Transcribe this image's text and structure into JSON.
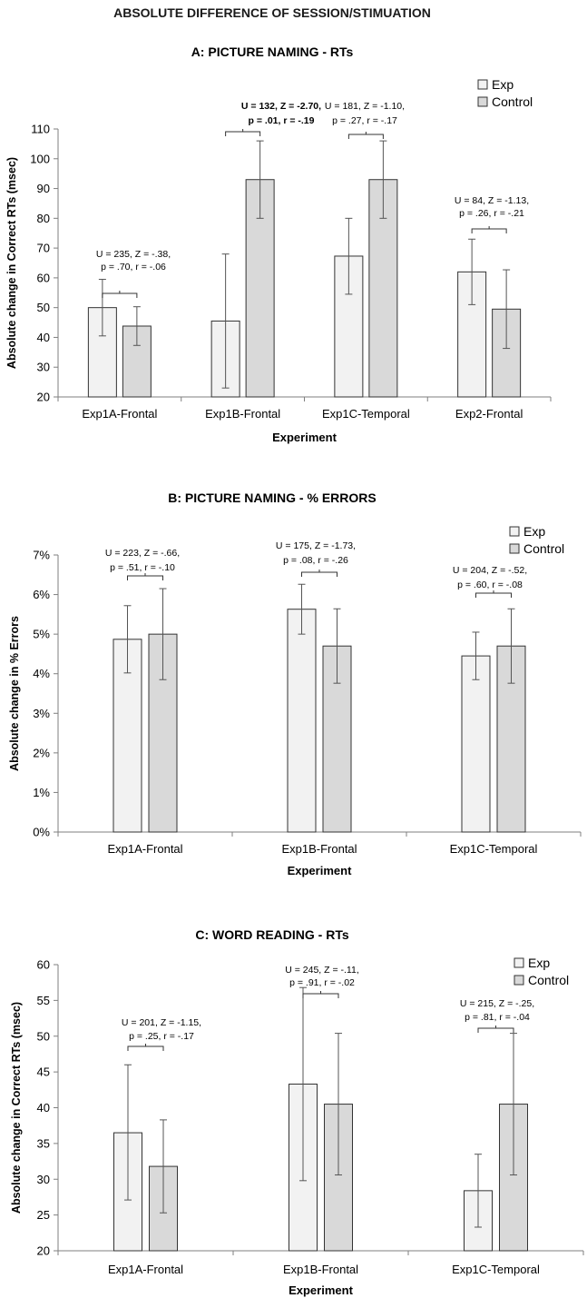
{
  "page_title": "ABSOLUTE DIFFERENCE OF SESSION/STIMUATION",
  "colors": {
    "exp": "#f2f2f2",
    "control": "#d9d9d9",
    "edge": "#333333",
    "axis": "#7f7f7f"
  },
  "chart_data": [
    {
      "id": "A",
      "type": "bar",
      "title": "A: PICTURE NAMING - RTs",
      "xlabel": "Experiment",
      "ylabel": "Absolute change in Correct RTs (msec)",
      "ylim": [
        20,
        110
      ],
      "yticks": [
        "20",
        "30",
        "40",
        "50",
        "60",
        "70",
        "80",
        "90",
        "100",
        "110"
      ],
      "grid": false,
      "legend_position": "top-right",
      "categories": [
        "Exp1A-Frontal",
        "Exp1B-Frontal",
        "Exp1C-Temporal",
        "Exp2-Frontal"
      ],
      "series": [
        {
          "name": "Exp",
          "values": [
            50,
            45.5,
            67.3,
            62
          ],
          "error_low": [
            40.5,
            23,
            54.5,
            51
          ],
          "error_high": [
            59.5,
            68,
            80,
            73
          ]
        },
        {
          "name": "Control",
          "values": [
            43.8,
            93,
            93,
            49.5
          ],
          "error_low": [
            37.3,
            80,
            80,
            36.3
          ],
          "error_high": [
            50.3,
            106,
            106,
            62.7
          ]
        }
      ],
      "annotations": [
        {
          "lines": [
            "U = 235, Z = -.38,",
            "p = .70, r = -.06"
          ],
          "bold": false
        },
        {
          "lines": [
            "U = 132, Z = -2.70,",
            "p = .01, r = -.19"
          ],
          "bold": true
        },
        {
          "lines": [
            "U = 181, Z = -1.10,",
            "p = .27, r = -.17"
          ],
          "bold": false
        },
        {
          "lines": [
            "U = 84, Z = -1.13,",
            "p = .26, r = -.21"
          ],
          "bold": false
        }
      ]
    },
    {
      "id": "B",
      "type": "bar",
      "title": "B: PICTURE NAMING - % ERRORS",
      "xlabel": "Experiment",
      "ylabel": "Absolute change in % Errors",
      "ylim": [
        0,
        7
      ],
      "yticks": [
        "0%",
        "1%",
        "2%",
        "3%",
        "4%",
        "5%",
        "6%",
        "7%"
      ],
      "grid": false,
      "legend_position": "top-right",
      "categories": [
        "Exp1A-Frontal",
        "Exp1B-Frontal",
        "Exp1C-Temporal"
      ],
      "series": [
        {
          "name": "Exp",
          "values": [
            4.87,
            5.63,
            4.45
          ],
          "error_low": [
            4.02,
            5.0,
            3.85
          ],
          "error_high": [
            5.72,
            6.26,
            5.05
          ]
        },
        {
          "name": "Control",
          "values": [
            5.0,
            4.7,
            4.7
          ],
          "error_low": [
            3.85,
            3.76,
            3.76
          ],
          "error_high": [
            6.15,
            5.64,
            5.64
          ]
        }
      ],
      "annotations": [
        {
          "lines": [
            "U = 223, Z = -.66,",
            "p = .51, r = -.10"
          ],
          "bold": false
        },
        {
          "lines": [
            "U = 175, Z = -1.73,",
            "p = .08, r = -.26"
          ],
          "bold": false
        },
        {
          "lines": [
            "U = 204, Z = -.52,",
            "p = .60, r = -.08"
          ],
          "bold": false
        }
      ]
    },
    {
      "id": "C",
      "type": "bar",
      "title": "C: WORD READING - RTs",
      "xlabel": "Experiment",
      "ylabel": "Absolute change in Correct RTs (msec)",
      "ylim": [
        20,
        60
      ],
      "yticks": [
        "20",
        "25",
        "30",
        "35",
        "40",
        "45",
        "50",
        "55",
        "60"
      ],
      "grid": false,
      "legend_position": "top-right",
      "categories": [
        "Exp1A-Frontal",
        "Exp1B-Frontal",
        "Exp1C-Temporal"
      ],
      "series": [
        {
          "name": "Exp",
          "values": [
            36.5,
            43.3,
            28.4
          ],
          "error_low": [
            27.1,
            29.8,
            23.3
          ],
          "error_high": [
            46.0,
            56.8,
            33.5
          ]
        },
        {
          "name": "Control",
          "values": [
            31.8,
            40.5,
            40.5
          ],
          "error_low": [
            25.3,
            30.6,
            30.6
          ],
          "error_high": [
            38.3,
            50.4,
            50.4
          ]
        }
      ],
      "annotations": [
        {
          "lines": [
            "U = 201, Z = -1.15,",
            "p = .25, r = -.17"
          ],
          "bold": false
        },
        {
          "lines": [
            "U = 245, Z = -.11,",
            "p = .91, r = -.02"
          ],
          "bold": false
        },
        {
          "lines": [
            "U = 215, Z = -.25,",
            "p = .81, r = -.04"
          ],
          "bold": false
        }
      ]
    }
  ]
}
